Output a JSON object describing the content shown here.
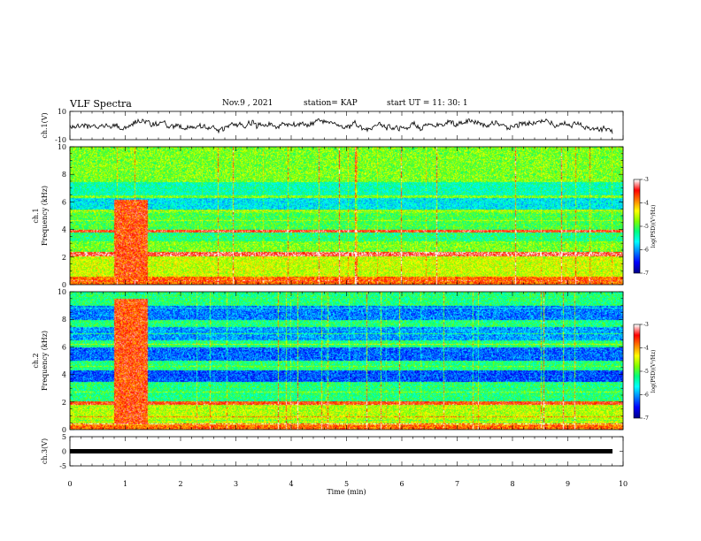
{
  "header": {
    "title": "VLF Spectra",
    "date": "Nov.9 , 2021",
    "station": "station= KAP",
    "start": "start UT = 11: 30: 1"
  },
  "colors": {
    "spectrum_scale": [
      "#00008b",
      "#0000ff",
      "#0080ff",
      "#00ffff",
      "#00ff80",
      "#80ff00",
      "#ffff00",
      "#ff8000",
      "#ff0000",
      "#ffffff"
    ]
  },
  "chart_data": [
    {
      "type": "line",
      "panel": "ch1-waveform",
      "ylabel": "ch.1(V)",
      "ylim": [
        -10,
        10
      ],
      "yticks": [
        "10",
        "-10"
      ],
      "xlim": [
        0,
        10
      ]
    },
    {
      "type": "heatmap",
      "panel": "ch1-spectrogram",
      "ylabel_top": "ch.1",
      "ylabel": "Frequency (kHz)",
      "ylim": [
        0,
        10
      ],
      "yticks": [
        "0",
        "2",
        "4",
        "6",
        "8",
        "10"
      ],
      "xlim": [
        0,
        10
      ],
      "colorbar": {
        "label": "log(PSD)(V²/Hz)",
        "range": [
          -7,
          -3
        ],
        "ticks": [
          "-3",
          "-4",
          "-5",
          "-6",
          "-7"
        ]
      },
      "notable_band_time_min": [
        0.8,
        1.4
      ]
    },
    {
      "type": "heatmap",
      "panel": "ch2-spectrogram",
      "ylabel_top": "ch.2",
      "ylabel": "Frequency (kHz)",
      "ylim": [
        0,
        10
      ],
      "yticks": [
        "0",
        "2",
        "4",
        "6",
        "8",
        "10"
      ],
      "xlim": [
        0,
        10
      ],
      "colorbar": {
        "label": "log(PSD)(V²/Hz)",
        "range": [
          -7,
          -3
        ],
        "ticks": [
          "-3",
          "-4",
          "-5",
          "-6",
          "-7"
        ]
      },
      "notable_band_time_min": [
        0.8,
        1.4
      ]
    },
    {
      "type": "line",
      "panel": "ch3-waveform",
      "ylabel": "ch.3(V)",
      "ylim": [
        -5,
        5
      ],
      "yticks": [
        "5",
        "0",
        "-5"
      ],
      "xlim": [
        0,
        10
      ],
      "level_v": 0
    }
  ],
  "xaxis": {
    "label": "Time (min)",
    "ticks": [
      "0",
      "1",
      "2",
      "3",
      "4",
      "5",
      "6",
      "7",
      "8",
      "9",
      "10"
    ]
  }
}
